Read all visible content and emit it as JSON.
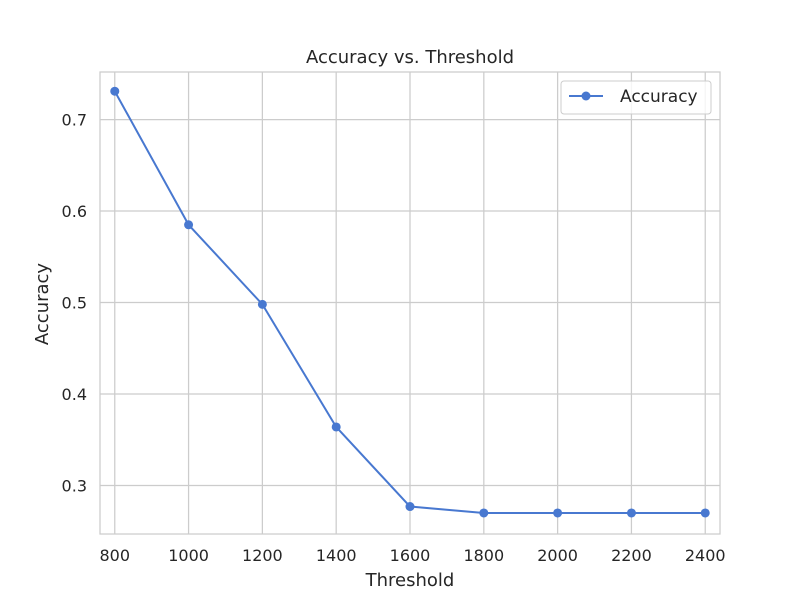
{
  "chart_data": {
    "type": "line",
    "title": "Accuracy vs. Threshold",
    "xlabel": "Threshold",
    "ylabel": "Accuracy",
    "xlim": [
      760,
      2440
    ],
    "ylim": [
      0.247,
      0.752
    ],
    "grid": true,
    "legend_position": "top-right",
    "x_ticks": [
      800,
      1000,
      1200,
      1400,
      1600,
      1800,
      2000,
      2200,
      2400
    ],
    "y_ticks": [
      0.3,
      0.4,
      0.5,
      0.6,
      0.7
    ],
    "series": [
      {
        "name": "Accuracy",
        "color": "#4878d0",
        "marker": "circle",
        "x": [
          800,
          1000,
          1200,
          1400,
          1600,
          1800,
          2000,
          2200,
          2400
        ],
        "y": [
          0.731,
          0.585,
          0.498,
          0.364,
          0.277,
          0.27,
          0.27,
          0.27,
          0.27
        ]
      }
    ]
  }
}
